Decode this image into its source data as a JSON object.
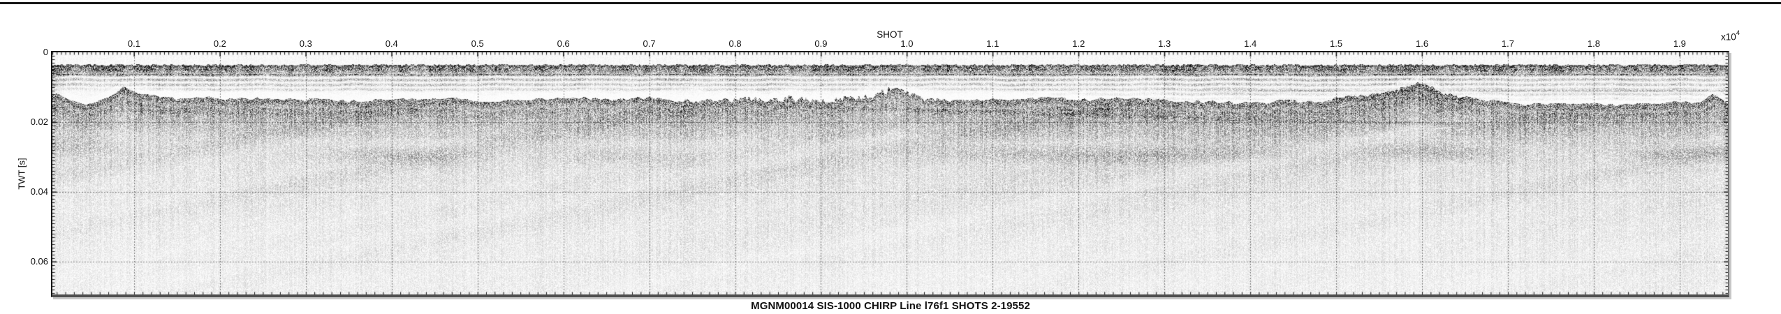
{
  "figure": {
    "caption": "MGNM00014 SIS-1000 CHIRP Line l76f1 SHOTS 2-19552"
  },
  "colors": {
    "background": "#ffffff",
    "ink": "#111111",
    "frame": "#171717",
    "frame_right": "#707070",
    "frame_bottom": "#4e4e4e",
    "grid_dots": "#1a1a1a"
  },
  "chart_data": {
    "type": "heatmap",
    "subtype": "seismic-reflection-profile",
    "title": "MGNM00014 SIS-1000 CHIRP Line l76f1 SHOTS 2-19552",
    "x_axis": {
      "label": "SHOT",
      "unit_multiplier": "x10",
      "unit_exponent": "4",
      "tick_values": [
        0.1,
        0.2,
        0.3,
        0.4,
        0.5,
        0.6,
        0.7,
        0.8,
        0.9,
        1.0,
        1.1,
        1.2,
        1.3,
        1.4,
        1.5,
        1.6,
        1.7,
        1.8,
        1.9
      ],
      "tick_labels": [
        "0.1",
        "0.2",
        "0.3",
        "0.4",
        "0.5",
        "0.6",
        "0.7",
        "0.8",
        "0.9",
        "1.0",
        "1.1",
        "1.2",
        "1.3",
        "1.4",
        "1.5",
        "1.6",
        "1.7",
        "1.8",
        "1.9"
      ],
      "minor_tick_interval": 0.005,
      "range_shots": [
        2,
        19552
      ],
      "grid_interval": 0.1
    },
    "y_axis": {
      "label": "TWT [s]",
      "tick_values": [
        0,
        0.02,
        0.04,
        0.06
      ],
      "tick_labels": [
        "0",
        "0.02",
        "0.04",
        "0.06"
      ],
      "minor_tick_interval": 0.001,
      "range": [
        0,
        0.0694
      ],
      "grid_interval": 0.02
    },
    "grid": {
      "style": "dotted",
      "on": true
    },
    "layers": {
      "direct_arrival_band_twt": [
        0.0036,
        0.0063
      ],
      "reverberation_band_twt": [
        0.0063,
        0.0108
      ],
      "reverberation_band_twt_right_side": [
        0.0063,
        0.014
      ],
      "seafloor": {
        "units": [
          "shot_x10e4",
          "twt_s"
        ],
        "points_shot_twt": [
          [
            0.004,
            0.0124
          ],
          [
            0.025,
            0.014
          ],
          [
            0.05,
            0.0146
          ],
          [
            0.07,
            0.0136
          ],
          [
            0.088,
            0.011
          ],
          [
            0.105,
            0.0128
          ],
          [
            0.14,
            0.0136
          ],
          [
            0.17,
            0.0132
          ],
          [
            0.21,
            0.014
          ],
          [
            0.25,
            0.0137
          ],
          [
            0.29,
            0.0143
          ],
          [
            0.34,
            0.014
          ],
          [
            0.39,
            0.0144
          ],
          [
            0.45,
            0.0141
          ],
          [
            0.51,
            0.0143
          ],
          [
            0.57,
            0.0141
          ],
          [
            0.63,
            0.0142
          ],
          [
            0.69,
            0.0139
          ],
          [
            0.74,
            0.0137
          ],
          [
            0.79,
            0.014
          ],
          [
            0.85,
            0.0138
          ],
          [
            0.9,
            0.014
          ],
          [
            0.94,
            0.0135
          ],
          [
            0.965,
            0.0128
          ],
          [
            0.99,
            0.0106
          ],
          [
            1.005,
            0.0124
          ],
          [
            1.03,
            0.0138
          ],
          [
            1.08,
            0.0142
          ],
          [
            1.13,
            0.0139
          ],
          [
            1.18,
            0.0135
          ],
          [
            1.24,
            0.0138
          ],
          [
            1.3,
            0.0143
          ],
          [
            1.36,
            0.0147
          ],
          [
            1.42,
            0.0149
          ],
          [
            1.47,
            0.0142
          ],
          [
            1.52,
            0.0125
          ],
          [
            1.56,
            0.0118
          ],
          [
            1.6,
            0.0098
          ],
          [
            1.63,
            0.0126
          ],
          [
            1.67,
            0.0143
          ],
          [
            1.72,
            0.015
          ],
          [
            1.77,
            0.0153
          ],
          [
            1.83,
            0.0149
          ],
          [
            1.88,
            0.0147
          ],
          [
            1.91,
            0.0151
          ],
          [
            1.925,
            0.0147
          ],
          [
            1.938,
            0.0114
          ],
          [
            1.957,
            0.015
          ]
        ]
      },
      "subbottom_horizons": [
        {
          "name": "shallow-subbottom-left",
          "opacity": 0.4,
          "points_shot_twt": [
            [
              0.03,
              0.0163
            ],
            [
              0.15,
              0.017
            ],
            [
              0.28,
              0.0176
            ],
            [
              0.42,
              0.0181
            ],
            [
              0.55,
              0.0186
            ]
          ]
        },
        {
          "name": "dipping-reflector",
          "opacity": 0.42,
          "points_shot_twt": [
            [
              0.8,
              0.0151
            ],
            [
              0.95,
              0.016
            ],
            [
              1.1,
              0.017
            ],
            [
              1.3,
              0.0186
            ],
            [
              1.48,
              0.0197
            ],
            [
              1.68,
              0.0207
            ]
          ]
        },
        {
          "name": "deep-faint-band",
          "opacity": 0.2,
          "points_shot_twt": [
            [
              0.004,
              0.027
            ],
            [
              0.25,
              0.029
            ],
            [
              0.5,
              0.03
            ],
            [
              0.75,
              0.0302
            ],
            [
              1.0,
              0.029
            ],
            [
              1.25,
              0.0296
            ],
            [
              1.5,
              0.0284
            ],
            [
              1.75,
              0.0292
            ],
            [
              1.957,
              0.0289
            ]
          ]
        }
      ],
      "notes": "grayscale amplitude section; darker = higher amplitude; texture fades with depth"
    }
  }
}
